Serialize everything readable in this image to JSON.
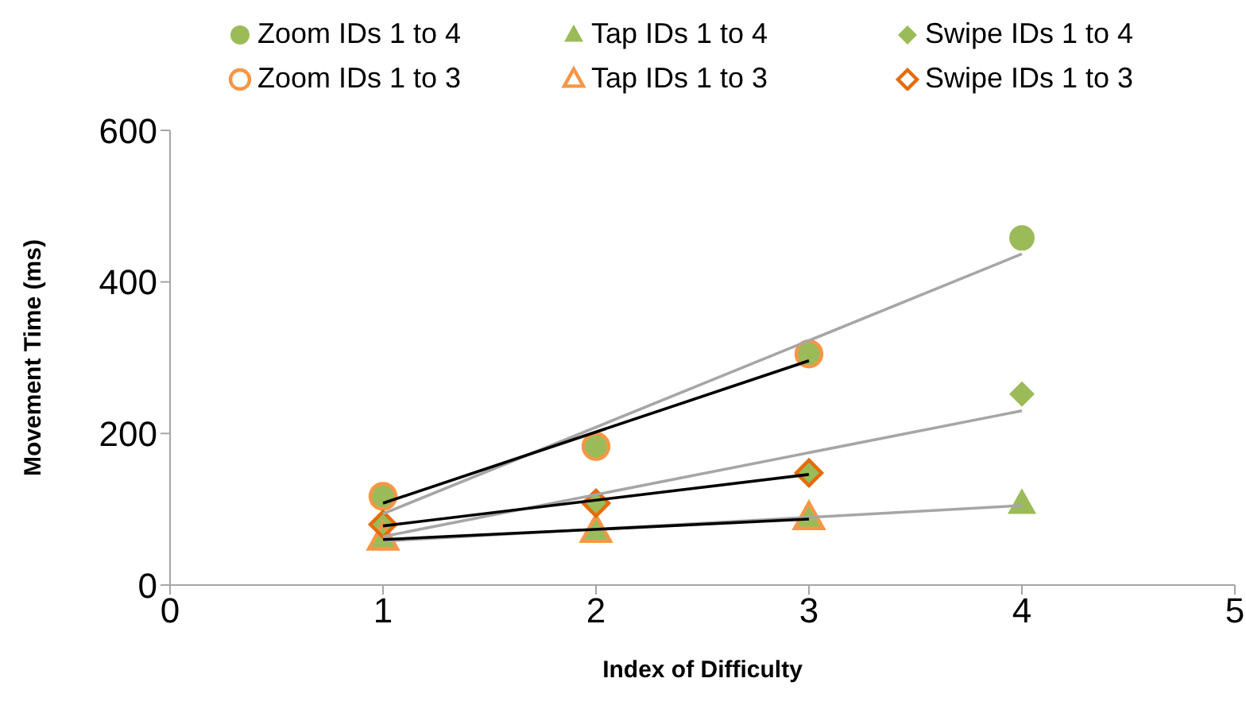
{
  "chart_data": {
    "type": "scatter",
    "xlabel": "Index of Difficulty",
    "ylabel": "Movement Time (ms)",
    "xlim": [
      0,
      5
    ],
    "xticks": [
      0,
      1,
      2,
      3,
      4,
      5
    ],
    "ylim": [
      0,
      600
    ],
    "yticks": [
      0,
      200,
      400,
      600
    ],
    "grid": false,
    "legend": "top",
    "series": [
      {
        "name": "Zoom IDs 1 to 4",
        "color": "#9bbb59",
        "marker": "circle",
        "x": [
          1,
          2,
          3,
          4
        ],
        "values": [
          117,
          183,
          305,
          458
        ]
      },
      {
        "name": "Tap IDs 1 to 4",
        "color": "#9bbb59",
        "marker": "triangle",
        "x": [
          1,
          2,
          3,
          4
        ],
        "values": [
          61,
          71,
          88,
          107
        ]
      },
      {
        "name": "Swipe IDs 1 to 4",
        "color": "#9bbb59",
        "marker": "diamond",
        "x": [
          1,
          2,
          3,
          4
        ],
        "values": [
          80,
          108,
          148,
          252
        ]
      },
      {
        "name": "Zoom IDs 1 to 3",
        "color": "#f79646",
        "marker": "circle",
        "x": [
          1,
          2,
          3
        ],
        "values": [
          117,
          183,
          305
        ]
      },
      {
        "name": "Tap IDs 1 to 3",
        "color": "#f79646",
        "marker": "triangle",
        "x": [
          1,
          2,
          3
        ],
        "values": [
          61,
          71,
          88
        ]
      },
      {
        "name": "Swipe IDs 1 to 3",
        "color": "#e46c0a",
        "marker": "diamond",
        "x": [
          1,
          2,
          3
        ],
        "values": [
          80,
          108,
          148
        ]
      },
      {
        "type": "line",
        "color": "#a6a6a6",
        "marker": "none",
        "x": [
          1,
          4
        ],
        "values": [
          94,
          437
        ]
      },
      {
        "type": "line",
        "color": "#a6a6a6",
        "marker": "none",
        "x": [
          1,
          4
        ],
        "values": [
          64,
          230
        ]
      },
      {
        "type": "line",
        "color": "#a6a6a6",
        "marker": "none",
        "x": [
          1,
          4
        ],
        "values": [
          58,
          105
        ]
      },
      {
        "type": "line",
        "color": "#000000",
        "marker": "none",
        "x": [
          1,
          3
        ],
        "values": [
          108,
          296
        ]
      },
      {
        "type": "line",
        "color": "#000000",
        "marker": "none",
        "x": [
          1,
          3
        ],
        "values": [
          78,
          146
        ]
      },
      {
        "type": "line",
        "color": "#000000",
        "marker": "none",
        "x": [
          1,
          3
        ],
        "values": [
          60,
          87
        ]
      }
    ]
  }
}
